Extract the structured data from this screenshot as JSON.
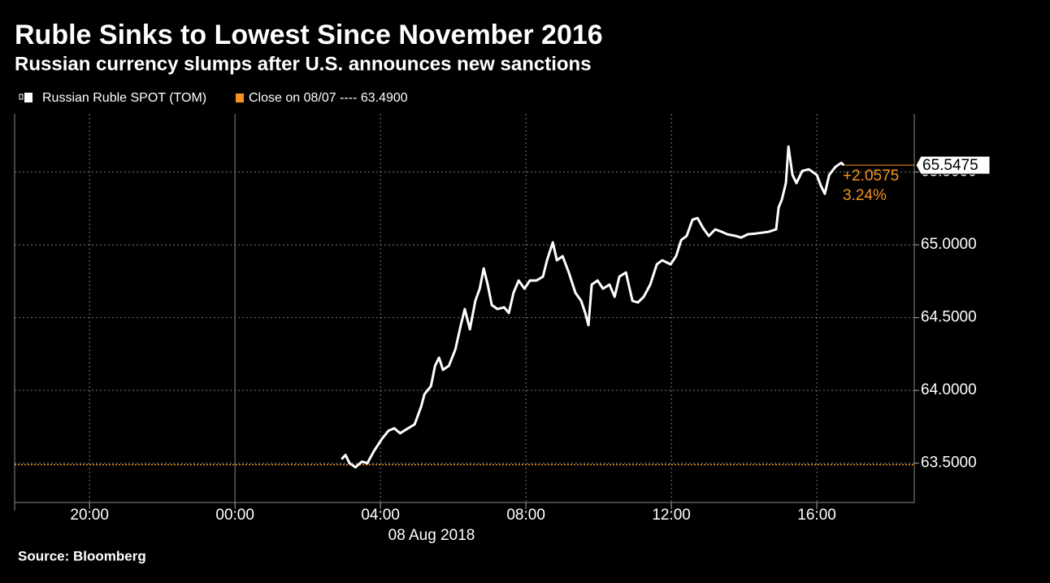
{
  "chart_data": {
    "type": "line",
    "title": "Ruble Sinks to Lowest Since November 2016",
    "subtitle": "Russian currency slumps after U.S. announces new sanctions",
    "source": "Source: Bloomberg",
    "x_date_label": "08 Aug 2018",
    "x": [
      2.93,
      3.04,
      3.15,
      3.31,
      3.49,
      3.64,
      3.82,
      4.04,
      4.22,
      4.38,
      4.54,
      4.72,
      4.94,
      5.12,
      5.21,
      5.39,
      5.5,
      5.61,
      5.72,
      5.88,
      6.06,
      6.21,
      6.32,
      6.46,
      6.61,
      6.73,
      6.84,
      6.95,
      7.06,
      7.22,
      7.4,
      7.53,
      7.66,
      7.8,
      7.96,
      8.11,
      8.29,
      8.47,
      8.58,
      8.74,
      8.85,
      9.01,
      9.18,
      9.36,
      9.52,
      9.63,
      9.72,
      9.81,
      9.97,
      10.12,
      10.3,
      10.44,
      10.57,
      10.75,
      10.93,
      11.08,
      11.24,
      11.42,
      11.6,
      11.75,
      11.98,
      12.13,
      12.27,
      12.42,
      12.58,
      12.72,
      12.87,
      13.03,
      13.21,
      13.39,
      13.54,
      13.77,
      13.92,
      14.1,
      14.32,
      14.66,
      14.88,
      14.95,
      15.04,
      15.15,
      15.22,
      15.33,
      15.44,
      15.6,
      15.78,
      16.0,
      16.11,
      16.22,
      16.34,
      16.51,
      16.67,
      16.74
    ],
    "series": [
      {
        "name": "Russian Ruble SPOT (TOM)",
        "color": "#ffffff",
        "values": [
          63.528,
          63.556,
          63.5,
          63.472,
          63.511,
          63.5,
          63.583,
          63.667,
          63.723,
          63.74,
          63.706,
          63.734,
          63.767,
          63.89,
          63.974,
          64.03,
          64.169,
          64.225,
          64.141,
          64.169,
          64.281,
          64.448,
          64.559,
          64.42,
          64.615,
          64.699,
          64.838,
          64.727,
          64.587,
          64.559,
          64.571,
          64.532,
          64.671,
          64.755,
          64.699,
          64.755,
          64.755,
          64.782,
          64.894,
          65.017,
          64.894,
          64.922,
          64.81,
          64.671,
          64.615,
          64.532,
          64.448,
          64.727,
          64.755,
          64.699,
          64.727,
          64.643,
          64.782,
          64.81,
          64.615,
          64.604,
          64.643,
          64.727,
          64.866,
          64.894,
          64.866,
          64.922,
          65.033,
          65.061,
          65.173,
          65.184,
          65.117,
          65.061,
          65.106,
          65.089,
          65.073,
          65.061,
          65.05,
          65.073,
          65.078,
          65.089,
          65.106,
          65.257,
          65.312,
          65.424,
          65.675,
          65.48,
          65.424,
          65.508,
          65.519,
          65.48,
          65.407,
          65.351,
          65.48,
          65.535,
          65.563,
          65.5475
        ]
      }
    ],
    "close": {
      "value": 63.49,
      "label": "Close on 08/07 ---- 63.4900",
      "color": "#f7941d"
    },
    "last_label": "65.5475",
    "change_label": "+2.0575",
    "change_pct_label": "3.24%",
    "xlim": [
      -6.06,
      18.68
    ],
    "xticks": [
      {
        "value": -4,
        "label": "20:00"
      },
      {
        "value": 0,
        "label": "00:00"
      },
      {
        "value": 4,
        "label": "04:00"
      },
      {
        "value": 8,
        "label": "08:00"
      },
      {
        "value": 12,
        "label": "12:00"
      },
      {
        "value": 16,
        "label": "16:00"
      }
    ],
    "ylim": [
      63.23,
      65.9
    ],
    "yticks": [
      {
        "value": 63.5,
        "label": "63.5000"
      },
      {
        "value": 64,
        "label": "64.0000"
      },
      {
        "value": 64.5,
        "label": "64.5000"
      },
      {
        "value": 65,
        "label": "65.0000"
      },
      {
        "value": 65.5,
        "label": "65.5000"
      }
    ],
    "grid": true
  }
}
